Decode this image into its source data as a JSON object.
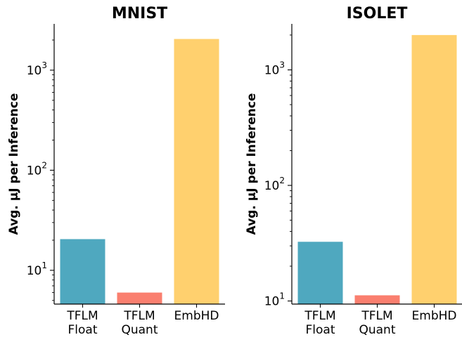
{
  "chart_data": [
    {
      "type": "bar",
      "title": "MNIST",
      "ylabel": "Avg. μJ per Inference",
      "xlabel": "",
      "yscale": "log",
      "ylim": [
        4.6,
        2900
      ],
      "yticks": [
        10,
        100,
        1000
      ],
      "ytick_labels": [
        {
          "base": "10",
          "exp": "1"
        },
        {
          "base": "10",
          "exp": "2"
        },
        {
          "base": "10",
          "exp": "3"
        }
      ],
      "categories": [
        [
          "TFLM",
          "Float"
        ],
        [
          "TFLM",
          "Quant"
        ],
        [
          "EmbHD"
        ]
      ],
      "values": [
        20.5,
        6.0,
        2050
      ],
      "colors": [
        "#4fa8bf",
        "#fa7f6f",
        "#ffd06e"
      ]
    },
    {
      "type": "bar",
      "title": "ISOLET",
      "ylabel": "Avg. μJ per Inference",
      "xlabel": "",
      "yscale": "log",
      "ylim": [
        9.4,
        2500
      ],
      "yticks": [
        10,
        100,
        1000
      ],
      "ytick_labels": [
        {
          "base": "10",
          "exp": "1"
        },
        {
          "base": "10",
          "exp": "2"
        },
        {
          "base": "10",
          "exp": "3"
        }
      ],
      "categories": [
        [
          "TFLM",
          "Float"
        ],
        [
          "TFLM",
          "Quant"
        ],
        [
          "EmbHD"
        ]
      ],
      "values": [
        32.5,
        11.2,
        2000
      ],
      "colors": [
        "#4fa8bf",
        "#fa7f6f",
        "#ffd06e"
      ]
    }
  ]
}
